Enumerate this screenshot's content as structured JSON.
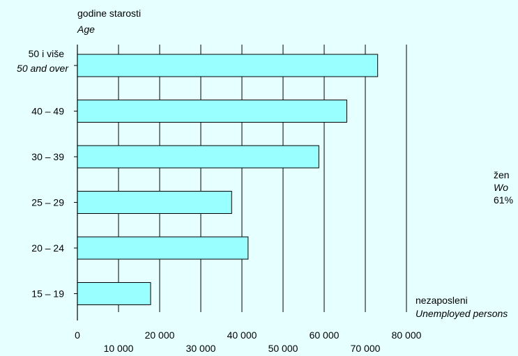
{
  "chart_data": {
    "type": "bar",
    "orientation": "horizontal",
    "ylabel": "godine starosti",
    "ylabel_en": "Age",
    "xlabel": "nezaposleni",
    "xlabel_en": "Unemployed persons",
    "categories": [
      {
        "label": "50 i više",
        "label_en": "50 and over"
      },
      {
        "label": "40 – 49",
        "label_en": ""
      },
      {
        "label": "30 – 39",
        "label_en": ""
      },
      {
        "label": "25 – 29",
        "label_en": ""
      },
      {
        "label": "20 – 24",
        "label_en": ""
      },
      {
        "label": "15 – 19",
        "label_en": ""
      }
    ],
    "values": [
      73000,
      65500,
      58700,
      37500,
      41500,
      17800
    ],
    "xlim": [
      0,
      80000
    ],
    "ticks": [
      {
        "value": 0,
        "label": "0"
      },
      {
        "value": 10000,
        "label": "10 000"
      },
      {
        "value": 20000,
        "label": "20 000"
      },
      {
        "value": 30000,
        "label": "30 000"
      },
      {
        "value": 40000,
        "label": "40 000"
      },
      {
        "value": 50000,
        "label": "50 000"
      },
      {
        "value": 60000,
        "label": "60 000"
      },
      {
        "value": 70000,
        "label": "70 000"
      },
      {
        "value": 80000,
        "label": "80 000"
      }
    ],
    "grid": true,
    "bar_color": "#99ffff",
    "annotation": {
      "line1": "žen",
      "line2": "Wo",
      "line3": "61%"
    }
  }
}
